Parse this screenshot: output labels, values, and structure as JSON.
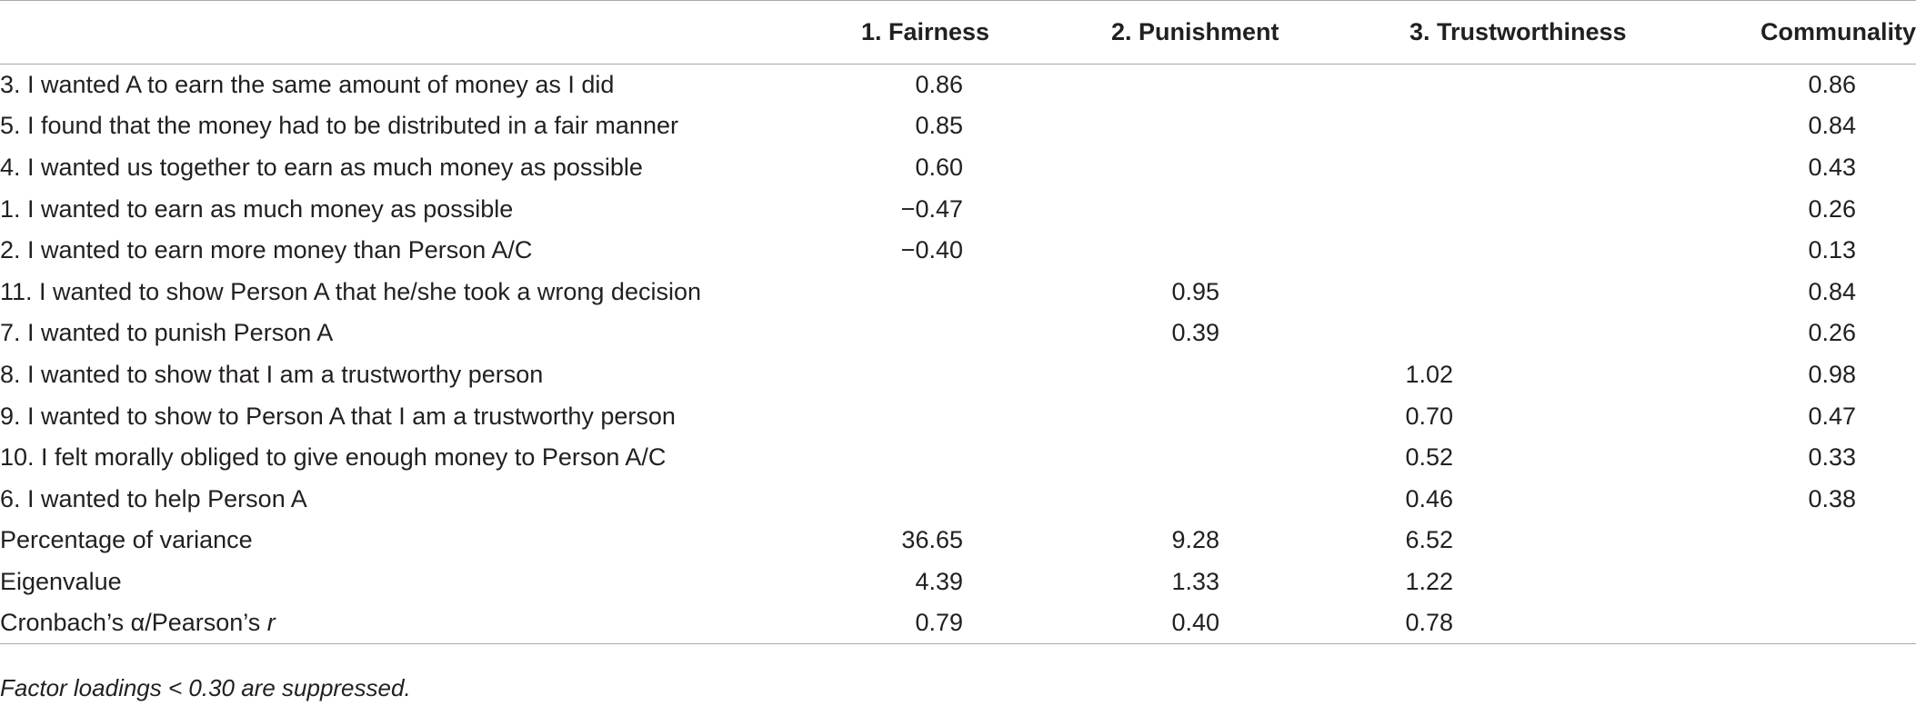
{
  "table": {
    "headers": {
      "label": "",
      "f1": "1. Fairness",
      "f2": "2. Punishment",
      "f3": "3. Trustworthiness",
      "comm": "Communality"
    },
    "rows": [
      {
        "label": "3. I wanted A to earn the same amount of money as I did",
        "f1": "0.86",
        "f2": "",
        "f3": "",
        "comm": "0.86"
      },
      {
        "label": "5. I found that the money had to be distributed in a fair manner",
        "f1": "0.85",
        "f2": "",
        "f3": "",
        "comm": "0.84"
      },
      {
        "label": "4. I wanted us together to earn as much money as possible",
        "f1": "0.60",
        "f2": "",
        "f3": "",
        "comm": "0.43"
      },
      {
        "label": "1. I wanted to earn as much money as possible",
        "f1": "−0.47",
        "f2": "",
        "f3": "",
        "comm": "0.26"
      },
      {
        "label": "2. I wanted to earn more money than Person A/C",
        "f1": "−0.40",
        "f2": "",
        "f3": "",
        "comm": "0.13"
      },
      {
        "label": "11. I wanted to show Person A that he/she took a wrong decision",
        "f1": "",
        "f2": "0.95",
        "f3": "",
        "comm": "0.84"
      },
      {
        "label": "7. I wanted to punish Person A",
        "f1": "",
        "f2": "0.39",
        "f3": "",
        "comm": "0.26"
      },
      {
        "label": "8. I wanted to show that I am a trustworthy person",
        "f1": "",
        "f2": "",
        "f3": "1.02",
        "comm": "0.98"
      },
      {
        "label": "9. I wanted to show to Person A that I am a trustworthy person",
        "f1": "",
        "f2": "",
        "f3": "0.70",
        "comm": "0.47"
      },
      {
        "label": "10. I felt morally obliged to give enough money to Person A/C",
        "f1": "",
        "f2": "",
        "f3": "0.52",
        "comm": "0.33"
      },
      {
        "label": "6. I wanted to help Person A",
        "f1": "",
        "f2": "",
        "f3": "0.46",
        "comm": "0.38"
      },
      {
        "label": "Percentage of variance",
        "f1": "36.65",
        "f2": "9.28",
        "f3": "6.52",
        "comm": ""
      },
      {
        "label": "Eigenvalue",
        "f1": "4.39",
        "f2": "1.33",
        "f3": "1.22",
        "comm": ""
      },
      {
        "label": "Cronbach’s α/Pearson’s ",
        "label_italic": "r",
        "f1": "0.79",
        "f2": "0.40",
        "f3": "0.78",
        "comm": ""
      }
    ]
  },
  "footnote": "Factor loadings < 0.30 are suppressed."
}
